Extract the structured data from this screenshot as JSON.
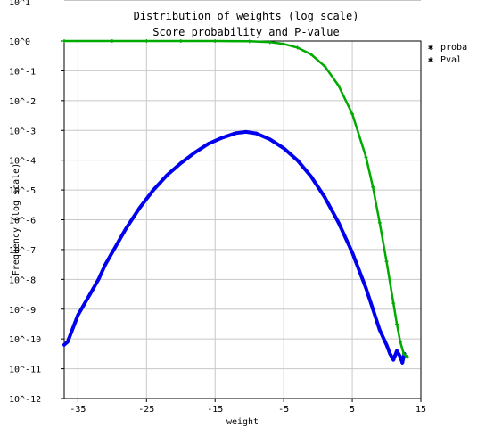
{
  "chart_data": {
    "type": "scatter",
    "title": "Distribution of weights  (log scale)",
    "subtitle": "Score probability and P-value",
    "xlabel": "weight",
    "ylabel": "Frequency (log scale)",
    "x_ticks": [
      -35,
      -25,
      -15,
      -5,
      5,
      15
    ],
    "x_tick_labels": [
      "-35",
      "-25",
      "-15",
      "-5",
      "5",
      "15"
    ],
    "xlim": [
      -37,
      15
    ],
    "y_log_scale": true,
    "y_ticks_exp": [
      0,
      -1,
      -2,
      -3,
      -4,
      -5,
      -6,
      -7,
      -8,
      -9,
      -10,
      -11,
      -12
    ],
    "y_tick_labels": [
      "10^0",
      "10^-1",
      "10^-2",
      "10^-3",
      "10^-4",
      "10^-5",
      "10^-6",
      "10^-7",
      "10^-8",
      "10^-9",
      "10^-10",
      "10^-11",
      "10^-12"
    ],
    "top_cut_label": "10^1",
    "ylim_exp": [
      -12,
      0
    ],
    "grid": true,
    "legend_position": "top-right-outside",
    "series": [
      {
        "name": "proba",
        "color": "#0000ee",
        "marker": "star",
        "x": [
          -37,
          -36.5,
          -36,
          -35.5,
          -35,
          -34,
          -33,
          -32,
          -31,
          -30,
          -29,
          -28,
          -26,
          -24,
          -22,
          -20,
          -18,
          -16,
          -14,
          -12,
          -10.5,
          -9,
          -7,
          -5,
          -3,
          -1,
          1,
          3,
          5,
          7,
          8,
          9,
          10,
          10.5,
          11,
          11.5,
          12,
          12.3,
          12.6
        ],
        "log10": [
          -10.2,
          -10.1,
          -9.8,
          -9.5,
          -9.2,
          -8.8,
          -8.4,
          -8.0,
          -7.5,
          -7.1,
          -6.7,
          -6.3,
          -5.6,
          -5.0,
          -4.5,
          -4.1,
          -3.75,
          -3.45,
          -3.25,
          -3.09,
          -3.05,
          -3.1,
          -3.3,
          -3.6,
          -4.0,
          -4.55,
          -5.25,
          -6.1,
          -7.1,
          -8.3,
          -9.0,
          -9.7,
          -10.2,
          -10.5,
          -10.7,
          -10.4,
          -10.6,
          -10.8,
          -10.5
        ]
      },
      {
        "name": "Pval",
        "color": "#00aa00",
        "marker": "star",
        "x": [
          -37,
          -30,
          -25,
          -20,
          -15,
          -10,
          -7,
          -5,
          -3,
          -1,
          1,
          3,
          5,
          7,
          8,
          9,
          10,
          11,
          11.5,
          12,
          12.5,
          13
        ],
        "log10": [
          0,
          0,
          0,
          0,
          0,
          -0.01,
          -0.04,
          -0.1,
          -0.22,
          -0.45,
          -0.85,
          -1.5,
          -2.45,
          -3.9,
          -4.9,
          -6.1,
          -7.4,
          -8.8,
          -9.5,
          -10.1,
          -10.5,
          -10.6
        ]
      }
    ]
  }
}
